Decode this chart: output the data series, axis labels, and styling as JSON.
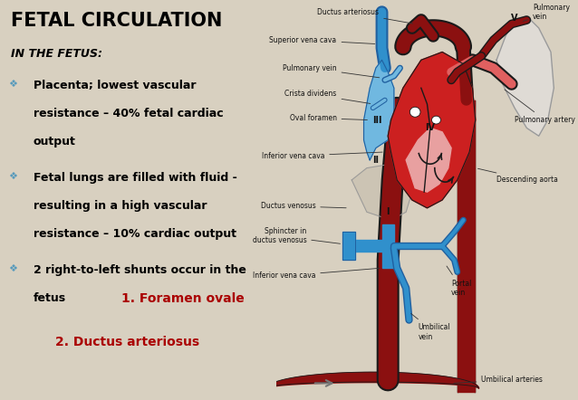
{
  "bg_color": "#d8d0c0",
  "left_panel_bg": "#ffffff",
  "title": "FETAL CIRCULATION",
  "subtitle": "IN THE FETUS:",
  "shunt1": "1. Foramen ovale",
  "shunt2": "2. Ductus arteriosus",
  "shunt_color": "#aa0000",
  "title_color": "#000000",
  "text_color": "#000000",
  "title_fontsize": 15,
  "subtitle_fontsize": 9,
  "bullet_fontsize": 9,
  "shunt_fontsize": 10,
  "roman_labels": [
    "I",
    "II",
    "III",
    "IV",
    "V"
  ],
  "red_dark": "#8b1010",
  "red_med": "#cc2020",
  "red_light": "#e06060",
  "red_pink": "#e8a0a0",
  "blue_dark": "#2060a0",
  "blue_med": "#3090cc",
  "blue_light": "#70b8e0",
  "outline": "#1a1a1a",
  "beige_bg": "#d8d0c0",
  "figsize": [
    6.38,
    4.42
  ],
  "dpi": 100
}
